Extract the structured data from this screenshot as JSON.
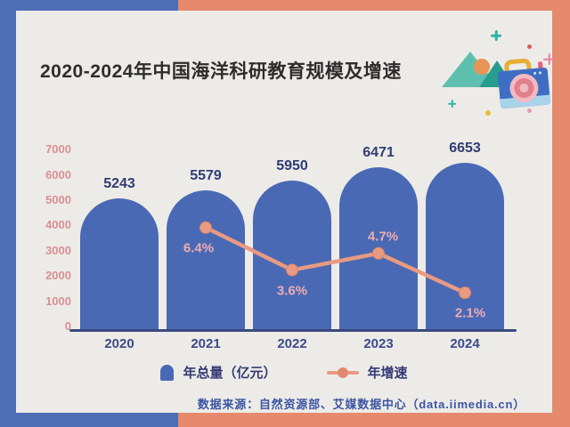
{
  "title": "2020-2024年中国海洋科研教育规模及增速",
  "chart_data": {
    "type": "bar",
    "categories": [
      "2020",
      "2021",
      "2022",
      "2023",
      "2024"
    ],
    "series": [
      {
        "name": "年总量（亿元）",
        "type": "bar",
        "values": [
          5243,
          5579,
          5950,
          6471,
          6653
        ]
      },
      {
        "name": "年增速",
        "type": "line",
        "unit": "%",
        "values": [
          null,
          6.4,
          3.6,
          4.7,
          2.1
        ],
        "labels": [
          "",
          "6.4%",
          "3.6%",
          "4.7%",
          "2.1%"
        ]
      }
    ],
    "title": "2020-2024年中国海洋科研教育规模及增速",
    "xlabel": "",
    "ylabel": "",
    "y_ticks": [
      0,
      1000,
      2000,
      3000,
      4000,
      5000,
      6000,
      7000
    ],
    "ylim": [
      0,
      7000
    ],
    "grid": false,
    "legend_position": "bottom"
  },
  "legend": {
    "bar": "年总量（亿元）",
    "line": "年增速"
  },
  "footer": "数据来源：自然资源部、艾媒数据中心（data.iimedia.cn）",
  "colors": {
    "background_left": "#4d6db6",
    "background_right": "#e58a6d",
    "card": "#edebe7",
    "bar": "#4a69b4",
    "growth_line": "#e89a82",
    "value_label": "#2f3c74",
    "axis_tick_label": "#d98f96",
    "percent_label": "#edacb2",
    "axis_line": "#3a4a80",
    "footer_text": "#3c55a3",
    "title_text": "#2d2d2d"
  },
  "decor_icons": [
    "mountains-icon",
    "sun-icon",
    "camera-icon",
    "sparkle-icon",
    "dot-icon"
  ]
}
